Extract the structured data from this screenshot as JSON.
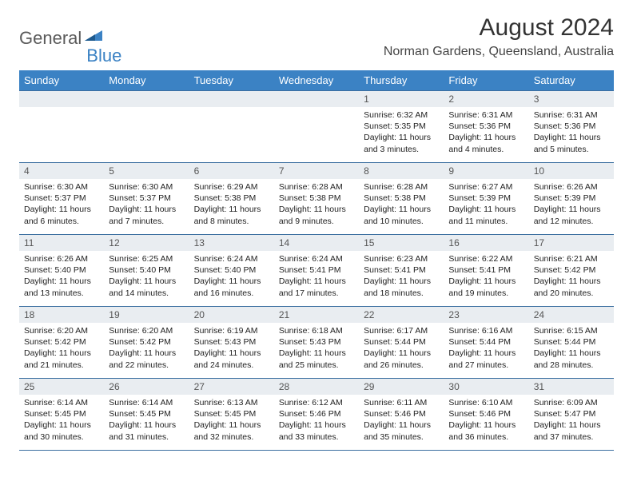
{
  "logo": {
    "part1": "General",
    "part2": "Blue"
  },
  "header": {
    "title": "August 2024",
    "location": "Norman Gardens, Queensland, Australia"
  },
  "colors": {
    "header_bg": "#3b82c4",
    "header_text": "#ffffff",
    "daynum_bg": "#e9edf1",
    "border": "#3b6fa0",
    "logo_gray": "#5a5a5a",
    "logo_blue": "#3b82c4"
  },
  "dayNames": [
    "Sunday",
    "Monday",
    "Tuesday",
    "Wednesday",
    "Thursday",
    "Friday",
    "Saturday"
  ],
  "weeks": [
    [
      {
        "num": "",
        "lines": []
      },
      {
        "num": "",
        "lines": []
      },
      {
        "num": "",
        "lines": []
      },
      {
        "num": "",
        "lines": []
      },
      {
        "num": "1",
        "lines": [
          "Sunrise: 6:32 AM",
          "Sunset: 5:35 PM",
          "Daylight: 11 hours and 3 minutes."
        ]
      },
      {
        "num": "2",
        "lines": [
          "Sunrise: 6:31 AM",
          "Sunset: 5:36 PM",
          "Daylight: 11 hours and 4 minutes."
        ]
      },
      {
        "num": "3",
        "lines": [
          "Sunrise: 6:31 AM",
          "Sunset: 5:36 PM",
          "Daylight: 11 hours and 5 minutes."
        ]
      }
    ],
    [
      {
        "num": "4",
        "lines": [
          "Sunrise: 6:30 AM",
          "Sunset: 5:37 PM",
          "Daylight: 11 hours and 6 minutes."
        ]
      },
      {
        "num": "5",
        "lines": [
          "Sunrise: 6:30 AM",
          "Sunset: 5:37 PM",
          "Daylight: 11 hours and 7 minutes."
        ]
      },
      {
        "num": "6",
        "lines": [
          "Sunrise: 6:29 AM",
          "Sunset: 5:38 PM",
          "Daylight: 11 hours and 8 minutes."
        ]
      },
      {
        "num": "7",
        "lines": [
          "Sunrise: 6:28 AM",
          "Sunset: 5:38 PM",
          "Daylight: 11 hours and 9 minutes."
        ]
      },
      {
        "num": "8",
        "lines": [
          "Sunrise: 6:28 AM",
          "Sunset: 5:38 PM",
          "Daylight: 11 hours and 10 minutes."
        ]
      },
      {
        "num": "9",
        "lines": [
          "Sunrise: 6:27 AM",
          "Sunset: 5:39 PM",
          "Daylight: 11 hours and 11 minutes."
        ]
      },
      {
        "num": "10",
        "lines": [
          "Sunrise: 6:26 AM",
          "Sunset: 5:39 PM",
          "Daylight: 11 hours and 12 minutes."
        ]
      }
    ],
    [
      {
        "num": "11",
        "lines": [
          "Sunrise: 6:26 AM",
          "Sunset: 5:40 PM",
          "Daylight: 11 hours and 13 minutes."
        ]
      },
      {
        "num": "12",
        "lines": [
          "Sunrise: 6:25 AM",
          "Sunset: 5:40 PM",
          "Daylight: 11 hours and 14 minutes."
        ]
      },
      {
        "num": "13",
        "lines": [
          "Sunrise: 6:24 AM",
          "Sunset: 5:40 PM",
          "Daylight: 11 hours and 16 minutes."
        ]
      },
      {
        "num": "14",
        "lines": [
          "Sunrise: 6:24 AM",
          "Sunset: 5:41 PM",
          "Daylight: 11 hours and 17 minutes."
        ]
      },
      {
        "num": "15",
        "lines": [
          "Sunrise: 6:23 AM",
          "Sunset: 5:41 PM",
          "Daylight: 11 hours and 18 minutes."
        ]
      },
      {
        "num": "16",
        "lines": [
          "Sunrise: 6:22 AM",
          "Sunset: 5:41 PM",
          "Daylight: 11 hours and 19 minutes."
        ]
      },
      {
        "num": "17",
        "lines": [
          "Sunrise: 6:21 AM",
          "Sunset: 5:42 PM",
          "Daylight: 11 hours and 20 minutes."
        ]
      }
    ],
    [
      {
        "num": "18",
        "lines": [
          "Sunrise: 6:20 AM",
          "Sunset: 5:42 PM",
          "Daylight: 11 hours and 21 minutes."
        ]
      },
      {
        "num": "19",
        "lines": [
          "Sunrise: 6:20 AM",
          "Sunset: 5:42 PM",
          "Daylight: 11 hours and 22 minutes."
        ]
      },
      {
        "num": "20",
        "lines": [
          "Sunrise: 6:19 AM",
          "Sunset: 5:43 PM",
          "Daylight: 11 hours and 24 minutes."
        ]
      },
      {
        "num": "21",
        "lines": [
          "Sunrise: 6:18 AM",
          "Sunset: 5:43 PM",
          "Daylight: 11 hours and 25 minutes."
        ]
      },
      {
        "num": "22",
        "lines": [
          "Sunrise: 6:17 AM",
          "Sunset: 5:44 PM",
          "Daylight: 11 hours and 26 minutes."
        ]
      },
      {
        "num": "23",
        "lines": [
          "Sunrise: 6:16 AM",
          "Sunset: 5:44 PM",
          "Daylight: 11 hours and 27 minutes."
        ]
      },
      {
        "num": "24",
        "lines": [
          "Sunrise: 6:15 AM",
          "Sunset: 5:44 PM",
          "Daylight: 11 hours and 28 minutes."
        ]
      }
    ],
    [
      {
        "num": "25",
        "lines": [
          "Sunrise: 6:14 AM",
          "Sunset: 5:45 PM",
          "Daylight: 11 hours and 30 minutes."
        ]
      },
      {
        "num": "26",
        "lines": [
          "Sunrise: 6:14 AM",
          "Sunset: 5:45 PM",
          "Daylight: 11 hours and 31 minutes."
        ]
      },
      {
        "num": "27",
        "lines": [
          "Sunrise: 6:13 AM",
          "Sunset: 5:45 PM",
          "Daylight: 11 hours and 32 minutes."
        ]
      },
      {
        "num": "28",
        "lines": [
          "Sunrise: 6:12 AM",
          "Sunset: 5:46 PM",
          "Daylight: 11 hours and 33 minutes."
        ]
      },
      {
        "num": "29",
        "lines": [
          "Sunrise: 6:11 AM",
          "Sunset: 5:46 PM",
          "Daylight: 11 hours and 35 minutes."
        ]
      },
      {
        "num": "30",
        "lines": [
          "Sunrise: 6:10 AM",
          "Sunset: 5:46 PM",
          "Daylight: 11 hours and 36 minutes."
        ]
      },
      {
        "num": "31",
        "lines": [
          "Sunrise: 6:09 AM",
          "Sunset: 5:47 PM",
          "Daylight: 11 hours and 37 minutes."
        ]
      }
    ]
  ]
}
